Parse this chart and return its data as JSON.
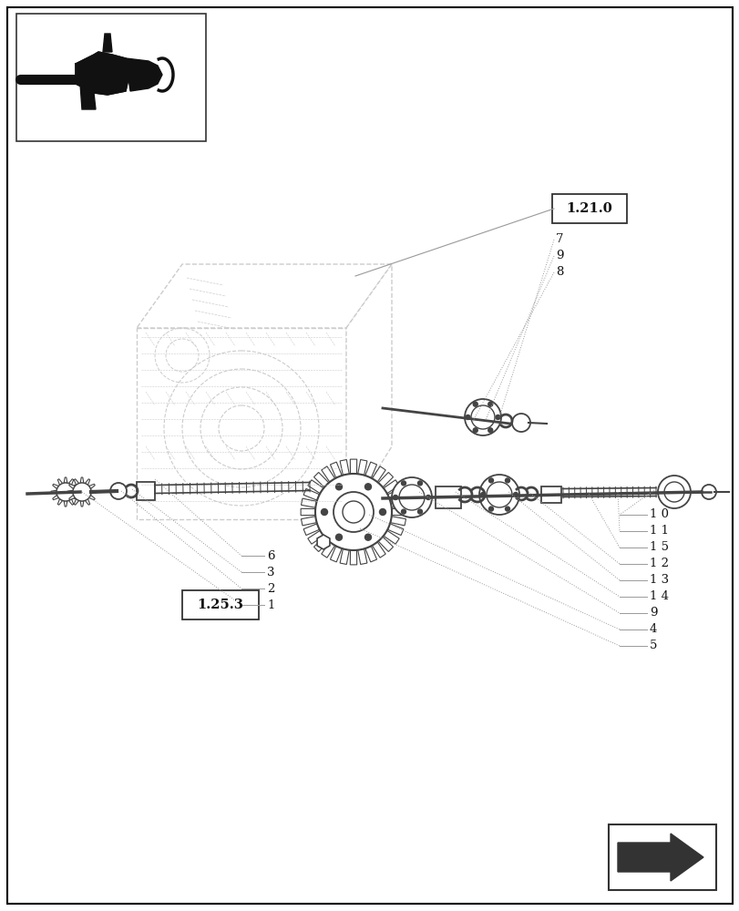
{
  "bg_color": "#ffffff",
  "border_color": "#000000",
  "gc": "#cccccc",
  "mc": "#444444",
  "lc": "#aaaaaa",
  "dc": "#222222",
  "figsize": [
    8.12,
    10.0
  ],
  "dpi": 100,
  "label_121": "1.21.0",
  "label_125": "1.25.3",
  "left_labels": [
    "6",
    "3",
    "2",
    "1"
  ],
  "right_labels": [
    "1 0",
    "1 1",
    "1 5",
    "1 2",
    "1 3",
    "1 4",
    "9",
    "4",
    "5"
  ],
  "upper_labels": [
    "7",
    "9",
    "8"
  ]
}
